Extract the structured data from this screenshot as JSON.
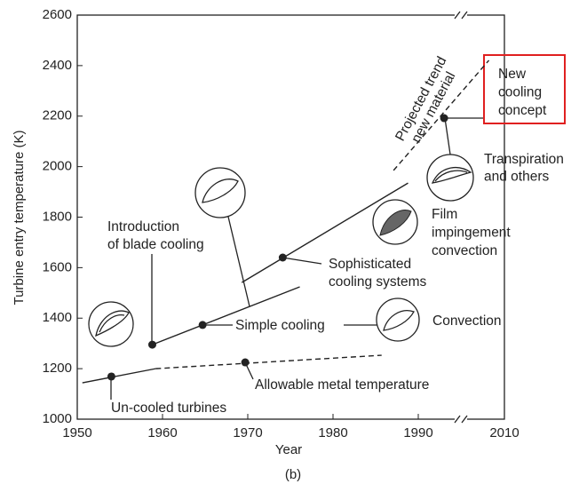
{
  "chart_data": {
    "type": "line",
    "x_label": "Year",
    "y_label": "Turbine entry temperature (K)",
    "caption": "(b)",
    "xlim": [
      1950,
      2010
    ],
    "xticks": [
      1950,
      1960,
      1970,
      1980,
      1990,
      2010
    ],
    "axis_break": true,
    "ylim": [
      1000,
      2600
    ],
    "yticks": [
      1000,
      1200,
      1400,
      1600,
      1800,
      2000,
      2200,
      2400,
      2600
    ],
    "color": "#222222",
    "series": [
      {
        "x": [
          1950.6,
          1959.2
        ],
        "values": [
          1144,
          1200
        ],
        "dashed": false
      },
      {
        "x": [
          1959.2,
          1985.7
        ],
        "values": [
          1200,
          1253
        ],
        "dashed": true
      },
      {
        "x": [
          1958.8,
          1976.1
        ],
        "values": [
          1295,
          1524
        ],
        "dashed": false
      },
      {
        "x": [
          1969.3,
          1988.8
        ],
        "values": [
          1541,
          1935
        ],
        "dashed": false
      },
      {
        "x": [
          1987.1,
          2006.4
        ],
        "values": [
          1985,
          2421
        ],
        "dashed": true
      }
    ],
    "points": {
      "x": [
        1954.0,
        1969.7,
        1958.8,
        1964.7,
        1974.1,
        1996.0
      ],
      "values": [
        1169,
        1225,
        1295,
        1373,
        1640,
        2192
      ]
    },
    "annotations": {
      "uncooled": [
        "Un-cooled turbines"
      ],
      "allowable": [
        "Allowable metal temperature"
      ],
      "simple": [
        "Simple cooling"
      ],
      "convection": [
        "Convection"
      ],
      "introduction": [
        "Introduction",
        "of blade cooling"
      ],
      "sophisticated": [
        "Sophisticated",
        "cooling systems"
      ],
      "film": [
        "Film",
        "impingement",
        "convection"
      ],
      "transpiration": [
        "Transpiration",
        "and others"
      ],
      "new_concept": [
        "New",
        "cooling",
        "concept"
      ],
      "projected": [
        "Projected trend",
        "new material"
      ]
    }
  }
}
